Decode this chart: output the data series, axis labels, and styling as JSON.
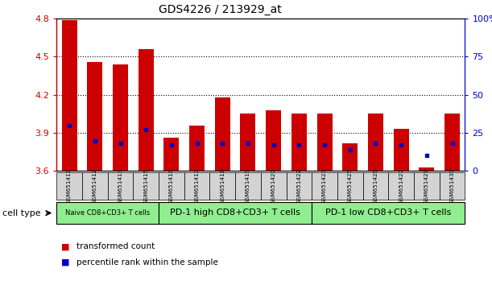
{
  "title": "GDS4226 / 213929_at",
  "samples": [
    "GSM651411",
    "GSM651412",
    "GSM651413",
    "GSM651415",
    "GSM651416",
    "GSM651417",
    "GSM651418",
    "GSM651419",
    "GSM651420",
    "GSM651422",
    "GSM651423",
    "GSM651425",
    "GSM651426",
    "GSM651427",
    "GSM651429",
    "GSM651430"
  ],
  "red_values": [
    4.79,
    4.46,
    4.44,
    4.56,
    3.86,
    3.96,
    4.18,
    4.05,
    4.08,
    4.05,
    4.05,
    3.82,
    4.05,
    3.93,
    3.63,
    4.05
  ],
  "blue_pct": [
    30,
    20,
    18,
    27,
    17,
    18,
    18,
    18,
    17,
    17,
    17,
    14,
    18,
    17,
    10,
    18
  ],
  "ymin": 3.6,
  "ymax": 4.8,
  "yticks_left": [
    3.6,
    3.9,
    4.2,
    4.5,
    4.8
  ],
  "yticks_right": [
    0,
    25,
    50,
    75,
    100
  ],
  "yticks_right_labels": [
    "0",
    "25",
    "50",
    "75",
    "100%"
  ],
  "grid_lines": [
    3.9,
    4.2,
    4.5
  ],
  "bar_color": "#cc0000",
  "dot_color": "#0000cc",
  "left_axis_color": "#cc0000",
  "right_axis_color": "#0000cc",
  "group_label_bg": "#90ee90",
  "sample_label_bg": "#d3d3d3",
  "groups": [
    {
      "label": "Naive CD8+CD3+ T cells",
      "start": 0,
      "end": 4,
      "fontsize": 6.0
    },
    {
      "label": "PD-1 high CD8+CD3+ T cells",
      "start": 4,
      "end": 10,
      "fontsize": 8.0
    },
    {
      "label": "PD-1 low CD8+CD3+ T cells",
      "start": 10,
      "end": 16,
      "fontsize": 8.0
    }
  ],
  "legend": [
    {
      "color": "#cc0000",
      "label": "transformed count"
    },
    {
      "color": "#0000cc",
      "label": "percentile rank within the sample"
    }
  ],
  "cell_type_label": "cell type"
}
